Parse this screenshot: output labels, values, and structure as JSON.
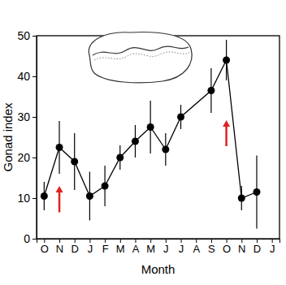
{
  "chart_data": {
    "type": "line",
    "x_label": "Month",
    "y_label": "Gonad index",
    "xlim": [
      -0.5,
      15.5
    ],
    "xticks": [
      {
        "value": 0,
        "label": "O"
      },
      {
        "value": 1,
        "label": "N"
      },
      {
        "value": 2,
        "label": "D"
      },
      {
        "value": 3,
        "label": "J"
      },
      {
        "value": 4,
        "label": "F"
      },
      {
        "value": 5,
        "label": "M"
      },
      {
        "value": 6,
        "label": "A"
      },
      {
        "value": 7,
        "label": "M"
      },
      {
        "value": 8,
        "label": "J"
      },
      {
        "value": 9,
        "label": "J"
      },
      {
        "value": 10,
        "label": "A"
      },
      {
        "value": 11,
        "label": "S"
      },
      {
        "value": 12,
        "label": "O"
      },
      {
        "value": 13,
        "label": "N"
      },
      {
        "value": 14,
        "label": "D"
      },
      {
        "value": 15,
        "label": "J"
      }
    ],
    "ylim": [
      0,
      50
    ],
    "yticks": [
      0,
      10,
      20,
      30,
      40,
      50
    ],
    "grid": false,
    "series": [
      {
        "color": "#000000",
        "marker": "circle",
        "line_style": "solid",
        "x": [
          0,
          1,
          2,
          3,
          4,
          5,
          6,
          7,
          8,
          9,
          11,
          12,
          13,
          14
        ],
        "values": [
          10.5,
          22.5,
          19,
          10.5,
          13,
          20,
          24,
          27.5,
          22,
          30,
          36.5,
          44,
          10,
          11.5
        ],
        "errors": [
          3.5,
          6.5,
          7,
          6,
          5,
          3,
          4,
          6.5,
          4,
          3,
          5.5,
          5,
          3,
          9
        ]
      }
    ],
    "arrows": [
      {
        "x": 1,
        "y_from": 6.5,
        "y_to": 13,
        "color": "#e02020"
      },
      {
        "x": 12,
        "y_from": 22.8,
        "y_to": 29.2,
        "color": "#e02020"
      }
    ]
  }
}
